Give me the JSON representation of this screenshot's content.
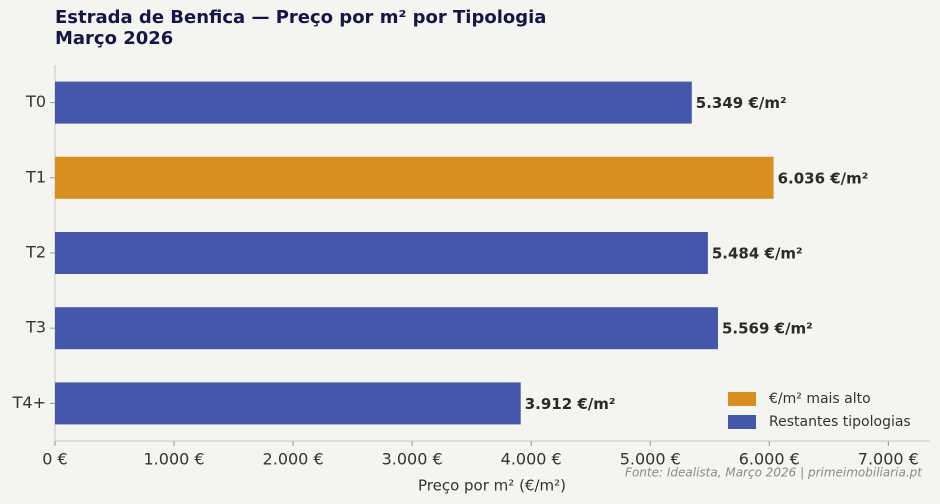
{
  "chart_data": {
    "type": "hbar",
    "title": "Estrada de Benfica — Preço por m² por Tipologia",
    "subtitle": "Março 2026",
    "x_label": "Preço por m² (€/m²)",
    "source": "Fonte: Idealista, Março 2026 | primeimobiliaria.pt",
    "categories": [
      "T0",
      "T1",
      "T2",
      "T3",
      "T4+"
    ],
    "values": [
      5349,
      6036,
      5484,
      5569,
      3912
    ],
    "value_labels": [
      "5.349 €/m²",
      "6.036 €/m²",
      "5.484 €/m²",
      "5.569 €/m²",
      "3.912 €/m²"
    ],
    "colors": [
      "#4457aa",
      "#d98f1f",
      "#4457aa",
      "#4457aa",
      "#4457aa"
    ],
    "legend": [
      {
        "name": "€/m² mais alto",
        "color": "#d98f1f"
      },
      {
        "name": "Restantes tipologias",
        "color": "#4457aa"
      }
    ],
    "legend_position": "lower right",
    "xlim": [
      0,
      7350
    ],
    "xticks": [
      {
        "value": 0,
        "label": "0 €"
      },
      {
        "value": 1000,
        "label": "1.000 €"
      },
      {
        "value": 2000,
        "label": "2.000 €"
      },
      {
        "value": 3000,
        "label": "3.000 €"
      },
      {
        "value": 4000,
        "label": "4.000 €"
      },
      {
        "value": 5000,
        "label": "5.000 €"
      },
      {
        "value": 6000,
        "label": "6.000 €"
      },
      {
        "value": 7000,
        "label": "7.000 €"
      }
    ]
  }
}
